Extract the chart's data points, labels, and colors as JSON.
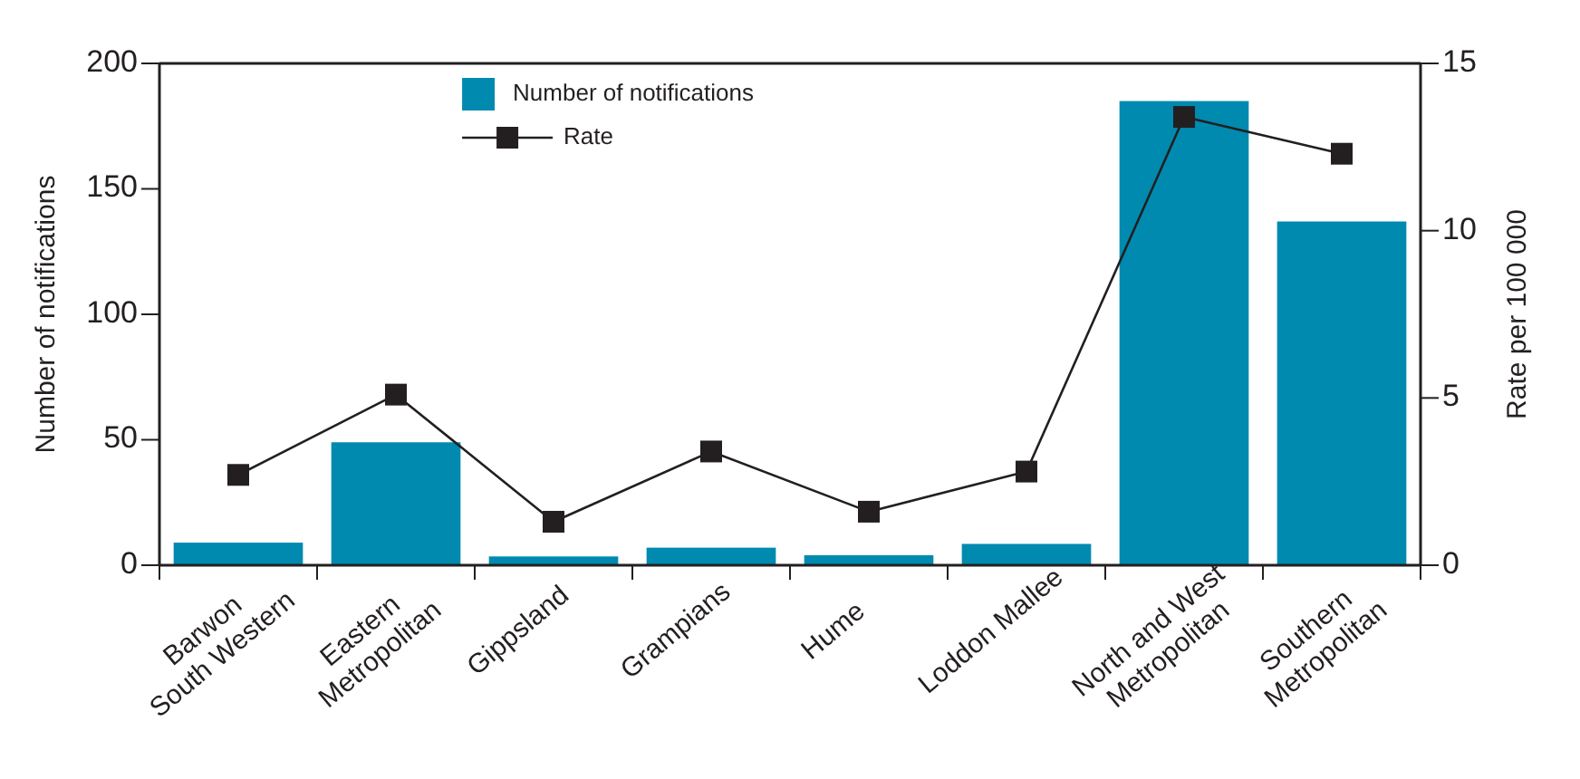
{
  "chart_data": {
    "type": "bar",
    "categories": [
      "Barwon\nSouth Western",
      "Eastern\nMetropolitan",
      "Gippsland",
      "Grampians",
      "Hume",
      "Loddon Mallee",
      "North and West\nMetropolitan",
      "Southern\nMetropolitan"
    ],
    "series": [
      {
        "name": "Number of notifications",
        "color": "#008ab0",
        "values": [
          9,
          49,
          3.5,
          7,
          4,
          8.5,
          185,
          137
        ]
      },
      {
        "name": "Rate",
        "type": "line",
        "axis": "y2",
        "color": "#231f20",
        "values": [
          2.7,
          5.1,
          1.3,
          3.4,
          1.6,
          2.8,
          13.4,
          12.3
        ]
      }
    ],
    "ylabel": "Number of notifications",
    "y2label": "Rate per 100 000",
    "ylim": [
      0,
      200
    ],
    "yticks": [
      0,
      50,
      100,
      150,
      200
    ],
    "y2lim": [
      0,
      15
    ],
    "y2ticks": [
      0,
      5,
      10,
      15
    ],
    "legend": "top",
    "marker": "square",
    "grid": false
  }
}
